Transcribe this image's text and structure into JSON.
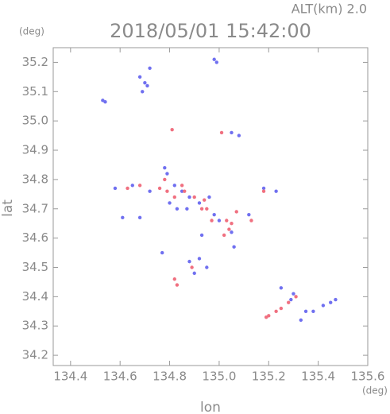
{
  "chart_data": {
    "type": "scatter",
    "title": "2018/05/01 15:42:00",
    "subtitle": "ALT(km) 2.0",
    "x_label": "lon",
    "y_label": "lat",
    "x_unit": "(deg)",
    "y_unit": "(deg)",
    "xlim": [
      134.33,
      135.6
    ],
    "ylim": [
      34.165,
      35.25
    ],
    "xticks": [
      134.4,
      134.6,
      134.8,
      {
        "value": 135,
        "label": "135.0"
      },
      135.2,
      135.4,
      135.6
    ],
    "yticks": [
      34.2,
      34.3,
      34.4,
      34.5,
      34.6,
      34.7,
      34.8,
      34.9,
      {
        "value": 35,
        "label": "35.0"
      },
      35.1,
      35.2
    ],
    "series": [
      {
        "color": "#7070f0",
        "x": [
          134.53,
          134.54,
          134.68,
          134.7,
          134.72,
          134.71,
          134.69,
          134.98,
          134.99,
          135.05,
          135.08,
          134.58,
          134.65,
          134.72,
          134.78,
          134.79,
          134.82,
          134.85,
          134.88,
          134.92,
          134.96,
          134.98,
          135.0,
          135.05,
          135.06,
          134.93,
          134.88,
          134.92,
          134.95,
          134.9,
          134.77,
          134.61,
          134.68,
          135.18,
          135.23,
          135.25,
          135.29,
          135.3,
          135.35,
          135.38,
          135.42,
          135.45,
          135.47,
          135.33,
          135.12,
          134.87,
          134.8,
          134.83
        ],
        "y": [
          35.07,
          35.065,
          35.15,
          35.13,
          35.18,
          35.12,
          35.1,
          35.21,
          35.2,
          34.96,
          34.95,
          34.77,
          34.78,
          34.76,
          34.84,
          34.82,
          34.78,
          34.76,
          34.74,
          34.72,
          34.74,
          34.68,
          34.66,
          34.62,
          34.57,
          34.61,
          34.52,
          34.53,
          34.5,
          34.48,
          34.55,
          34.67,
          34.67,
          34.77,
          34.76,
          34.43,
          34.39,
          34.41,
          34.35,
          34.35,
          34.37,
          34.38,
          34.39,
          34.32,
          34.68,
          34.7,
          34.72,
          34.7
        ]
      },
      {
        "color": "#f07080",
        "x": [
          134.81,
          135.01,
          134.63,
          134.68,
          134.76,
          134.78,
          134.79,
          134.82,
          134.86,
          134.9,
          134.94,
          134.95,
          135.03,
          135.05,
          135.07,
          135.04,
          135.02,
          134.97,
          135.13,
          135.18,
          134.82,
          134.83,
          134.89,
          135.19,
          135.2,
          135.23,
          135.25,
          135.28,
          135.31,
          134.85,
          134.93
        ],
        "y": [
          34.97,
          34.96,
          34.77,
          34.78,
          34.77,
          34.8,
          34.76,
          34.74,
          34.76,
          34.74,
          34.73,
          34.7,
          34.66,
          34.65,
          34.69,
          34.63,
          34.61,
          34.66,
          34.66,
          34.76,
          34.46,
          34.44,
          34.5,
          34.33,
          34.335,
          34.35,
          34.36,
          34.38,
          34.4,
          34.78,
          34.7
        ]
      }
    ]
  }
}
